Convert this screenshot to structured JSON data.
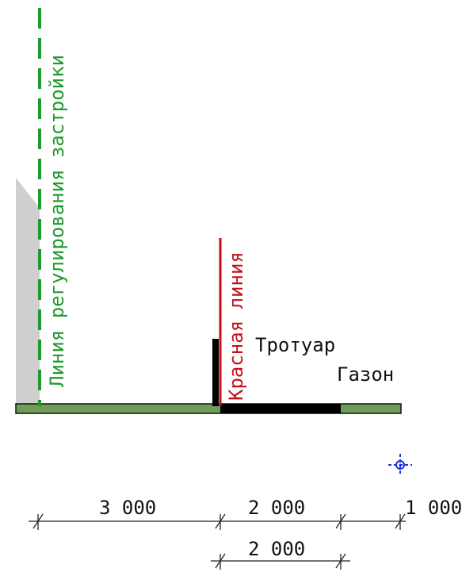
{
  "labels": {
    "building_line": "Линия регулирования застройки",
    "red_line": "Красная линия",
    "sidewalk": "Тротуар",
    "lawn": "Газон"
  },
  "dimensions": {
    "row1": [
      "3 000",
      "2 000",
      "1 000"
    ],
    "row2": [
      "2 000"
    ]
  },
  "colors": {
    "building_line": "#1f9a2e",
    "red_line": "#c0121b",
    "ground": "#6f9c56",
    "sidewalk_slab": "#000000",
    "building_fill": "#cfcfcf",
    "marker": "#1d2ee0",
    "dimension_line": "#222222"
  },
  "icons": {
    "marker": "crosshair-target-icon"
  }
}
